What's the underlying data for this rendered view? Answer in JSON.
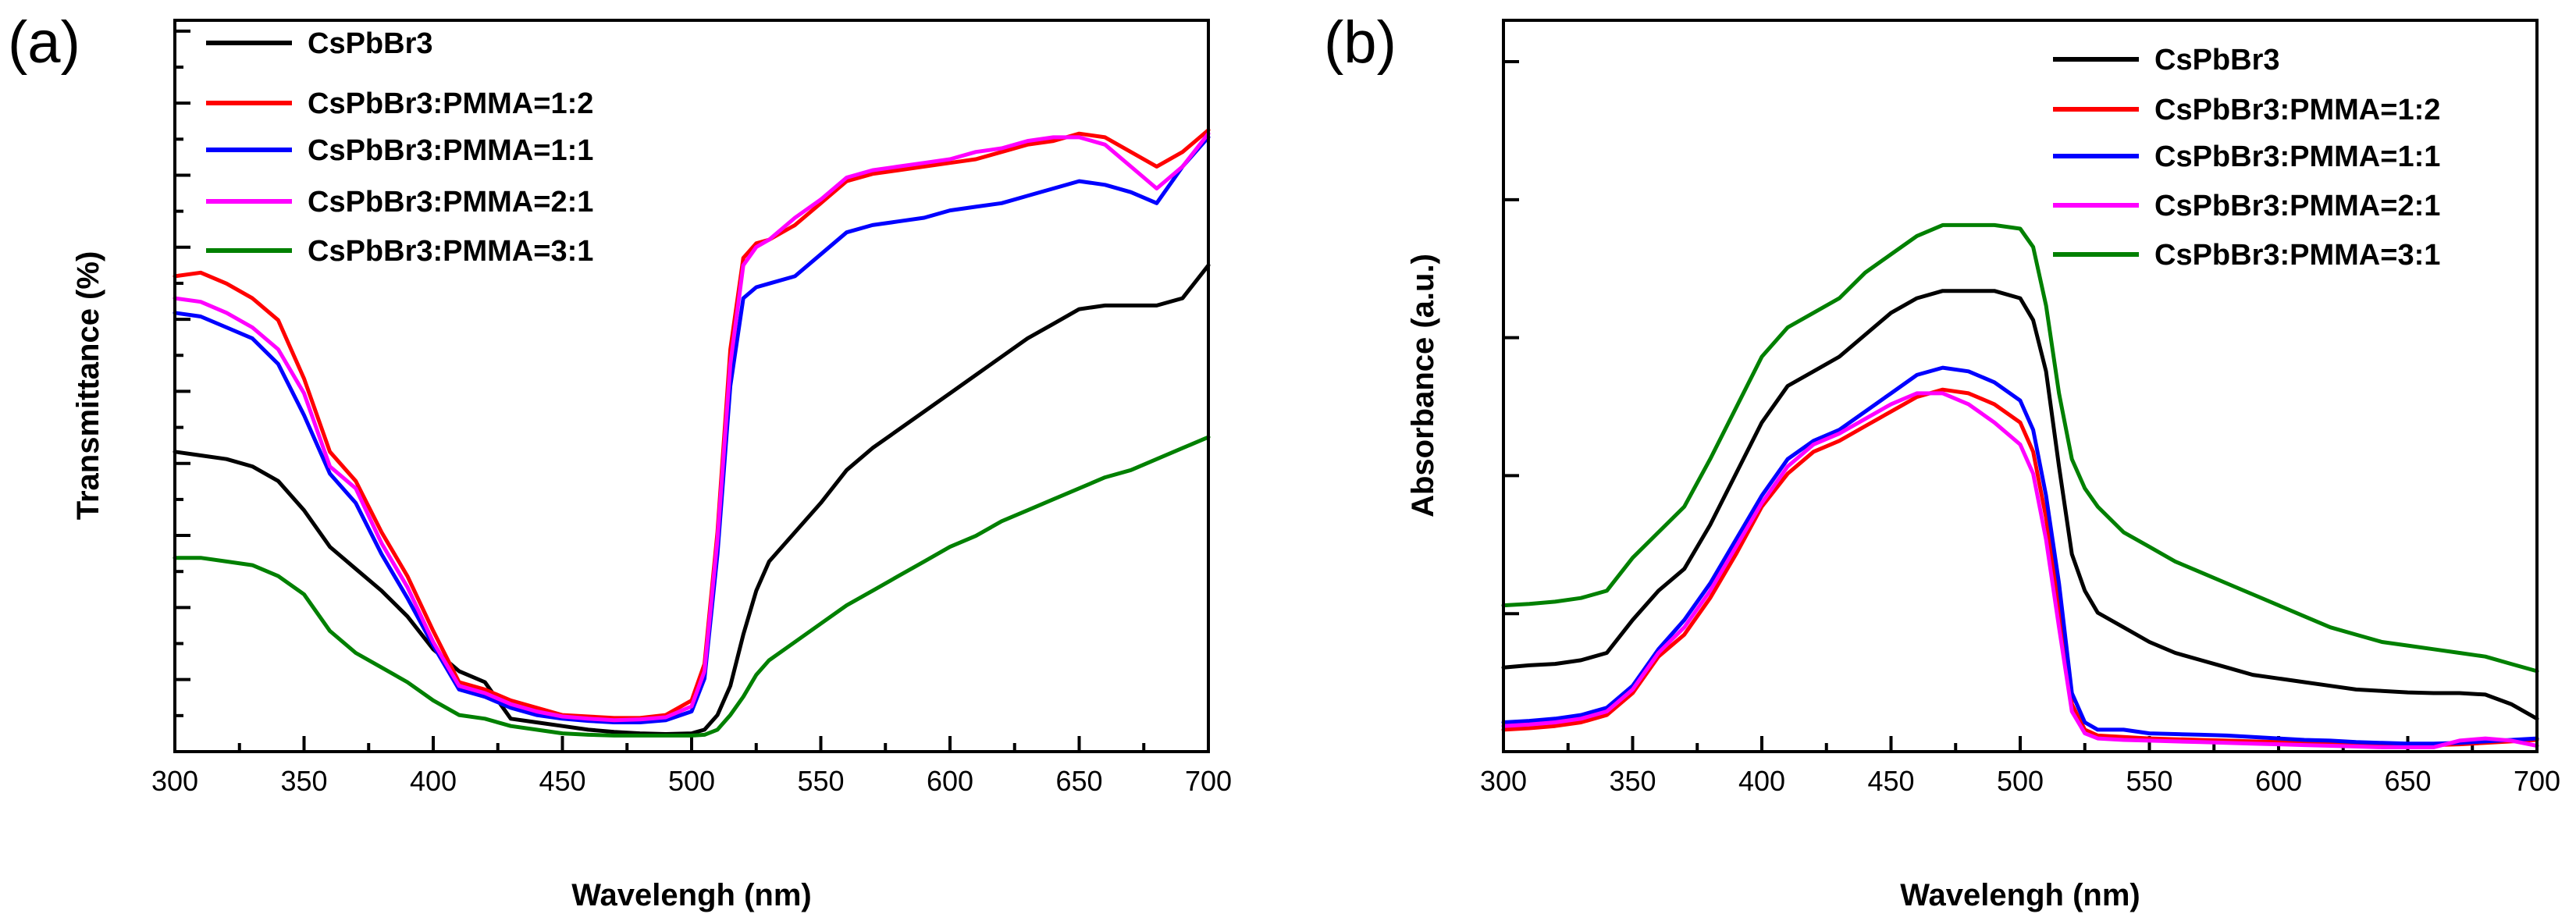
{
  "chart_data": [
    {
      "type": "line",
      "panel_label": "(a)",
      "xlabel": "Wavelengh (nm)",
      "ylabel": "Transmittance (%)",
      "xlim": [
        300,
        700
      ],
      "ylim": [
        0,
        100
      ],
      "xticks": [
        300,
        350,
        400,
        450,
        500,
        550,
        600,
        650,
        700
      ],
      "y_tick_labels_shown": false,
      "y_minor_ticks": 20,
      "legend_position": "top-left",
      "x": [
        300,
        310,
        320,
        330,
        340,
        350,
        360,
        370,
        380,
        390,
        400,
        410,
        420,
        430,
        440,
        450,
        460,
        470,
        480,
        490,
        500,
        505,
        510,
        515,
        520,
        525,
        530,
        540,
        550,
        560,
        570,
        580,
        590,
        600,
        610,
        620,
        630,
        640,
        650,
        660,
        670,
        680,
        690,
        700
      ],
      "series": [
        {
          "name": "CsPbBr3",
          "color": "#000000",
          "values": [
            41,
            40.5,
            40,
            39,
            37,
            33,
            28,
            25,
            22,
            18.5,
            14,
            11,
            9.5,
            4.5,
            4,
            3.5,
            3,
            2.7,
            2.5,
            2.4,
            2.5,
            3,
            5,
            9,
            16,
            22,
            26,
            30,
            34,
            38.5,
            41.5,
            44,
            46.5,
            49,
            51.5,
            54,
            56.5,
            58.5,
            60.5,
            61,
            61,
            61,
            62,
            66.5
          ]
        },
        {
          "name": "CsPbBr3:PMMA=1:2",
          "color": "#ff0000",
          "values": [
            65,
            65.5,
            64,
            62,
            59,
            51,
            41,
            37,
            30,
            24,
            16.5,
            9.5,
            8.5,
            7,
            6,
            5,
            4.8,
            4.6,
            4.6,
            5,
            7,
            12,
            30,
            55,
            67.5,
            69.5,
            70,
            72,
            75,
            78,
            79,
            79.5,
            80,
            80.5,
            81,
            82,
            83,
            83.5,
            84.5,
            84,
            82,
            80,
            82,
            85
          ]
        },
        {
          "name": "CsPbBr3:PMMA=1:1",
          "color": "#0000ff",
          "values": [
            60,
            59.5,
            58,
            56.5,
            53,
            46,
            38,
            34,
            27,
            21,
            14.5,
            8.5,
            7.5,
            6,
            5,
            4.5,
            4.2,
            4,
            4,
            4.3,
            5.5,
            10,
            27,
            50,
            62,
            63.5,
            64,
            65,
            68,
            71,
            72,
            72.5,
            73,
            74,
            74.5,
            75,
            76,
            77,
            78,
            77.5,
            76.5,
            75,
            80,
            84
          ]
        },
        {
          "name": "CsPbBr3:PMMA=2:1",
          "color": "#ff00ff",
          "values": [
            62,
            61.5,
            60,
            58,
            55,
            49,
            39,
            36,
            28.5,
            22.5,
            15,
            9,
            8,
            6.5,
            5.5,
            4.8,
            4.5,
            4.3,
            4.4,
            4.7,
            6.2,
            11,
            29,
            53,
            66.5,
            69,
            70,
            73,
            75.5,
            78.5,
            79.5,
            80,
            80.5,
            81,
            82,
            82.5,
            83.5,
            84,
            84,
            83,
            80,
            77,
            80,
            84.5
          ]
        },
        {
          "name": "CsPbBr3:PMMA=3:1",
          "color": "#008000",
          "values": [
            26.5,
            26.5,
            26,
            25.5,
            24,
            21.5,
            16.5,
            13.5,
            11.5,
            9.5,
            7,
            5,
            4.5,
            3.5,
            3,
            2.5,
            2.3,
            2.2,
            2.2,
            2.2,
            2.2,
            2.3,
            3,
            5,
            7.5,
            10.5,
            12.5,
            15,
            17.5,
            20,
            22,
            24,
            26,
            28,
            29.5,
            31.5,
            33,
            34.5,
            36,
            37.5,
            38.5,
            40,
            41.5,
            43
          ]
        }
      ]
    },
    {
      "type": "line",
      "panel_label": "(b)",
      "xlabel": "Wavelengh (nm)",
      "ylabel": "Absorbance (a.u.)",
      "xlim": [
        300,
        700
      ],
      "ylim": [
        0,
        100
      ],
      "xticks": [
        300,
        350,
        400,
        450,
        500,
        550,
        600,
        650,
        700
      ],
      "y_tick_labels_shown": false,
      "y_minor_ticks": 5,
      "legend_position": "top-right",
      "x": [
        300,
        310,
        320,
        330,
        340,
        350,
        360,
        370,
        380,
        390,
        400,
        410,
        420,
        430,
        440,
        450,
        460,
        470,
        480,
        490,
        500,
        505,
        510,
        515,
        520,
        525,
        530,
        540,
        550,
        560,
        570,
        580,
        590,
        600,
        610,
        620,
        630,
        640,
        650,
        660,
        670,
        680,
        690,
        700
      ],
      "series": [
        {
          "name": "CsPbBr3",
          "color": "#000000",
          "values": [
            11.5,
            11.8,
            12,
            12.5,
            13.5,
            18,
            22,
            25,
            31,
            38,
            45,
            50,
            52,
            54,
            57,
            60,
            62,
            63,
            63,
            63,
            62,
            59,
            52,
            39,
            27,
            22,
            19,
            17,
            15,
            13.5,
            12.5,
            11.5,
            10.5,
            10,
            9.5,
            9,
            8.5,
            8.3,
            8.1,
            8,
            8,
            7.8,
            6.5,
            4.5
          ]
        },
        {
          "name": "CsPbBr3:PMMA=1:2",
          "color": "#ff0000",
          "values": [
            3,
            3.2,
            3.5,
            4,
            5,
            8,
            13,
            16,
            21,
            27,
            33.5,
            38,
            41,
            42.5,
            44.5,
            46.5,
            48.5,
            49.5,
            49,
            47.5,
            45,
            41,
            32,
            20,
            6.5,
            3,
            2.2,
            2,
            1.8,
            1.7,
            1.6,
            1.5,
            1.4,
            1.3,
            1.2,
            1.1,
            1,
            0.9,
            0.8,
            0.9,
            1,
            1.2,
            1.4,
            1.6
          ]
        },
        {
          "name": "CsPbBr3:PMMA=1:1",
          "color": "#0000ff",
          "values": [
            4,
            4.2,
            4.5,
            5,
            6,
            9,
            14,
            18,
            23,
            29,
            35,
            40,
            42.5,
            44,
            46.5,
            49,
            51.5,
            52.5,
            52,
            50.5,
            48,
            44,
            35,
            23,
            8,
            4,
            3,
            3,
            2.5,
            2.4,
            2.3,
            2.2,
            2,
            1.8,
            1.6,
            1.5,
            1.3,
            1.2,
            1.1,
            1.1,
            1.2,
            1.4,
            1.6,
            1.8
          ]
        },
        {
          "name": "CsPbBr3:PMMA=2:1",
          "color": "#ff00ff",
          "values": [
            3.5,
            3.7,
            4,
            4.5,
            5.5,
            8.5,
            13.5,
            17,
            22,
            28,
            34,
            39,
            42,
            43.5,
            45.5,
            47.5,
            49,
            49,
            47.5,
            45,
            42,
            38,
            29,
            17,
            5.5,
            2.5,
            1.8,
            1.6,
            1.5,
            1.4,
            1.3,
            1.2,
            1.1,
            1,
            0.9,
            0.8,
            0.7,
            0.6,
            0.6,
            0.6,
            1.5,
            1.8,
            1.5,
            0.8
          ]
        },
        {
          "name": "CsPbBr3:PMMA=3:1",
          "color": "#008000",
          "values": [
            20,
            20.2,
            20.5,
            21,
            22,
            26.5,
            30,
            33.5,
            40,
            47,
            54,
            58,
            60,
            62,
            65.5,
            68,
            70.5,
            72,
            72,
            72,
            71.5,
            69,
            61,
            49,
            40,
            36,
            33.5,
            30,
            28,
            26,
            24.5,
            23,
            21.5,
            20,
            18.5,
            17,
            16,
            15,
            14.5,
            14,
            13.5,
            13,
            12,
            11
          ]
        }
      ]
    }
  ]
}
